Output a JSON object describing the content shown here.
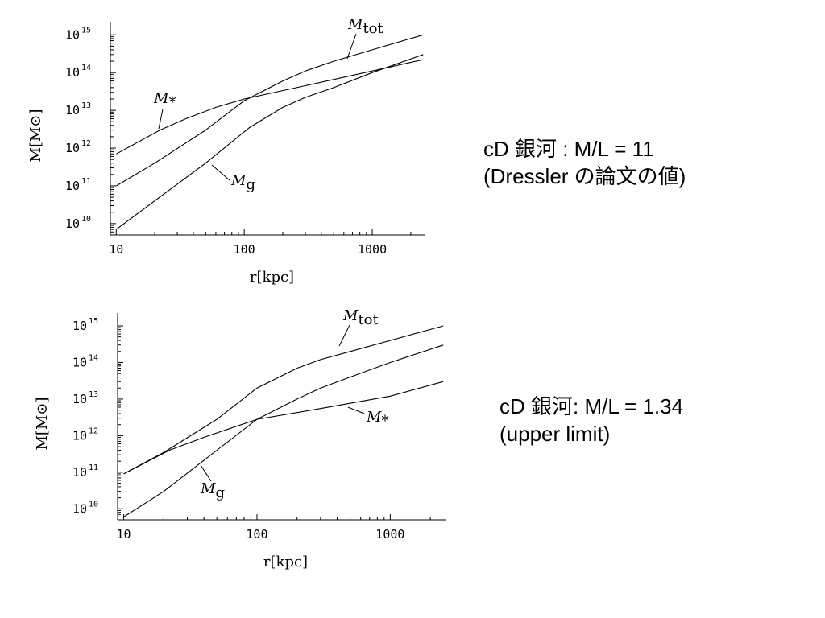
{
  "chart_data": [
    {
      "type": "line",
      "title": "",
      "xlabel": "r[kpc]",
      "ylabel": "M[M⊙]",
      "xscale": "log",
      "yscale": "log",
      "xlim": [
        9,
        2600
      ],
      "ylim": [
        5000000000.0,
        1500000000000000.0
      ],
      "xticks": [
        {
          "value": 10,
          "label": "10"
        },
        {
          "value": 100,
          "label": "100"
        },
        {
          "value": 1000,
          "label": "1000"
        }
      ],
      "yticks": [
        {
          "value": 10000000000.0,
          "base": "10",
          "exp": "10"
        },
        {
          "value": 100000000000.0,
          "base": "10",
          "exp": "11"
        },
        {
          "value": 1000000000000.0,
          "base": "10",
          "exp": "12"
        },
        {
          "value": 10000000000000.0,
          "base": "10",
          "exp": "13"
        },
        {
          "value": 100000000000000.0,
          "base": "10",
          "exp": "14"
        },
        {
          "value": 1000000000000000.0,
          "base": "10",
          "exp": "15"
        }
      ],
      "series": [
        {
          "name": "M_tot",
          "x": [
            10,
            20,
            50,
            100,
            200,
            300,
            500,
            1000,
            2500
          ],
          "y": [
            100000000000.0,
            400000000000.0,
            3000000000000.0,
            18000000000000.0,
            60000000000000.0,
            110000000000000.0,
            200000000000000.0,
            400000000000000.0,
            1000000000000000.0
          ]
        },
        {
          "name": "M_*",
          "x": [
            10,
            22,
            35,
            60,
            100,
            300,
            1000,
            2500
          ],
          "y": [
            700000000000.0,
            3000000000000.0,
            6000000000000.0,
            12000000000000.0,
            20000000000000.0,
            45000000000000.0,
            110000000000000.0,
            220000000000000.0
          ]
        },
        {
          "name": "M_g",
          "x": [
            10,
            20,
            50,
            110,
            200,
            300,
            500,
            1000,
            2500
          ],
          "y": [
            7000000000.0,
            40000000000.0,
            400000000000.0,
            3500000000000.0,
            12000000000000.0,
            22000000000000.0,
            40000000000000.0,
            100000000000000.0,
            300000000000000.0
          ]
        }
      ],
      "annotations": [
        {
          "series": "M_tot",
          "main": "M",
          "sub": "tot"
        },
        {
          "series": "M_*",
          "main": "M",
          "sub": "*"
        },
        {
          "series": "M_g",
          "main": "M",
          "sub": "g"
        }
      ]
    },
    {
      "type": "line",
      "title": "",
      "xlabel": "r[kpc]",
      "ylabel": "M[M⊙]",
      "xscale": "log",
      "yscale": "log",
      "xlim": [
        9,
        2600
      ],
      "ylim": [
        5000000000.0,
        1500000000000000.0
      ],
      "xticks": [
        {
          "value": 10,
          "label": "10"
        },
        {
          "value": 100,
          "label": "100"
        },
        {
          "value": 1000,
          "label": "1000"
        }
      ],
      "yticks": [
        {
          "value": 10000000000.0,
          "base": "10",
          "exp": "10"
        },
        {
          "value": 100000000000.0,
          "base": "10",
          "exp": "11"
        },
        {
          "value": 1000000000000.0,
          "base": "10",
          "exp": "12"
        },
        {
          "value": 10000000000000.0,
          "base": "10",
          "exp": "13"
        },
        {
          "value": 100000000000000.0,
          "base": "10",
          "exp": "14"
        },
        {
          "value": 1000000000000000.0,
          "base": "10",
          "exp": "15"
        }
      ],
      "series": [
        {
          "name": "M_tot",
          "x": [
            10,
            20,
            50,
            100,
            200,
            300,
            500,
            1000,
            2500
          ],
          "y": [
            90000000000.0,
            350000000000.0,
            2800000000000.0,
            20000000000000.0,
            70000000000000.0,
            120000000000000.0,
            200000000000000.0,
            400000000000000.0,
            1000000000000000.0
          ]
        },
        {
          "name": "M_*",
          "x": [
            10,
            22,
            40,
            70,
            100,
            300,
            1000,
            2500
          ],
          "y": [
            90000000000.0,
            400000000000.0,
            900000000000.0,
            1800000000000.0,
            2800000000000.0,
            5500000000000.0,
            12000000000000.0,
            30000000000000.0
          ]
        },
        {
          "name": "M_g",
          "x": [
            10,
            20,
            50,
            100,
            200,
            300,
            500,
            1000,
            2500
          ],
          "y": [
            6000000000.0,
            30000000000.0,
            400000000000.0,
            2800000000000.0,
            10000000000000.0,
            20000000000000.0,
            40000000000000.0,
            100000000000000.0,
            300000000000000.0
          ]
        }
      ],
      "annotations": [
        {
          "series": "M_tot",
          "main": "M",
          "sub": "tot"
        },
        {
          "series": "M_*",
          "main": "M",
          "sub": "*"
        },
        {
          "series": "M_g",
          "main": "M",
          "sub": "g"
        }
      ]
    }
  ],
  "captions": {
    "top": {
      "line1": "cD 銀河 :  M/L = 11",
      "line2": "(Dressler の論文の値)"
    },
    "bottom": {
      "line1": "cD 銀河: M/L = 1.34",
      "line2": "(upper limit)"
    }
  }
}
